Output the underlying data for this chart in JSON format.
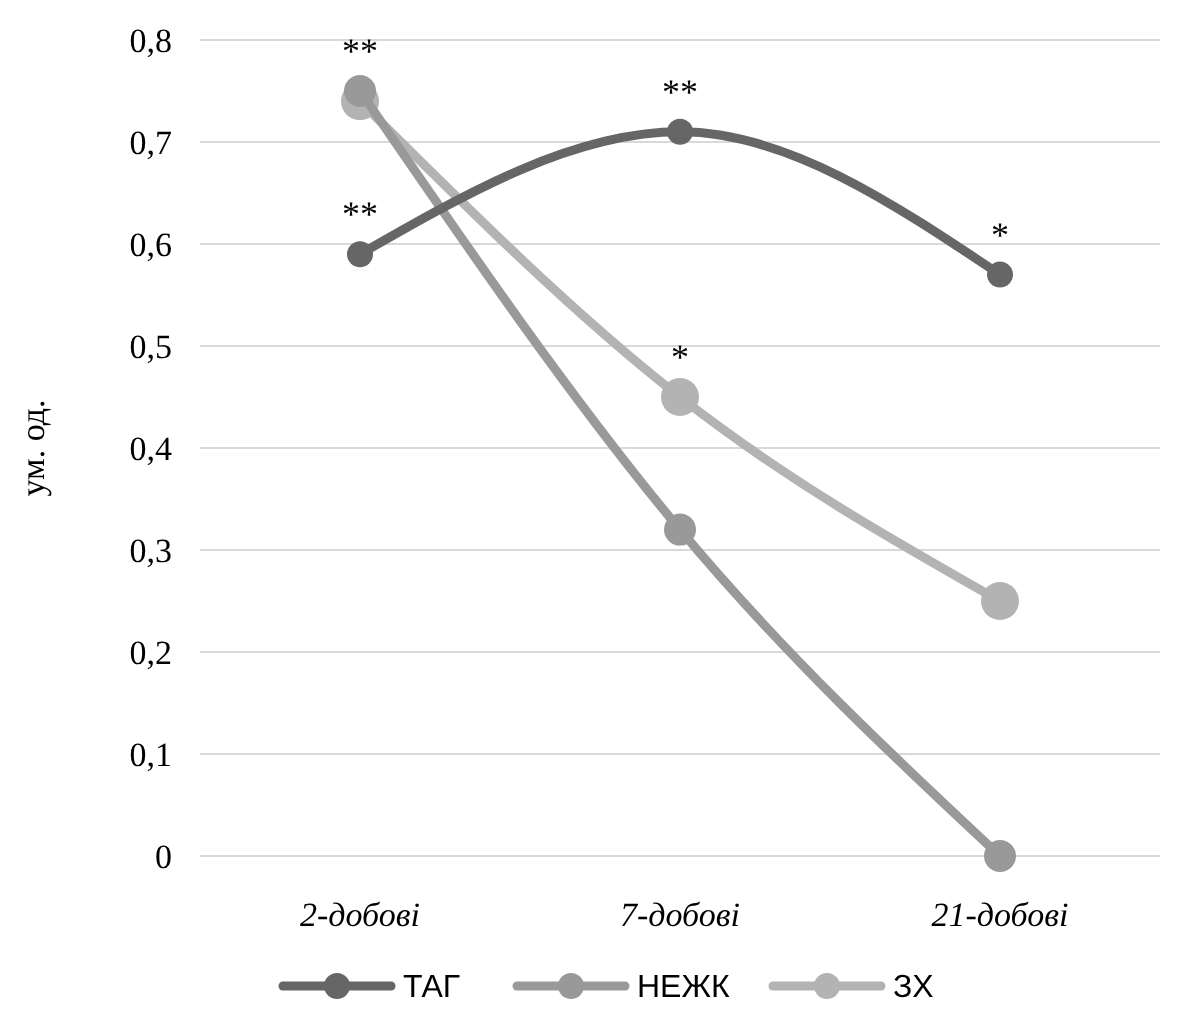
{
  "chart_data": {
    "type": "line",
    "ylabel": "ум. од.",
    "categories": [
      "2-добові",
      "7-добові",
      "21-добові"
    ],
    "series": [
      {
        "name": "ТАГ",
        "color": "#666666",
        "values": [
          0.59,
          0.71,
          0.57
        ]
      },
      {
        "name": "НЕЖК",
        "color": "#999999",
        "values": [
          0.75,
          0.32,
          0
        ]
      },
      {
        "name": "ЗХ",
        "color": "#b3b3b3",
        "values": [
          0.74,
          0.45,
          0.25
        ]
      }
    ],
    "ylim": [
      0,
      0.8
    ],
    "yticks": [
      {
        "value": 0,
        "label": "0"
      },
      {
        "value": 0.1,
        "label": "0,1"
      },
      {
        "value": 0.2,
        "label": "0,2"
      },
      {
        "value": 0.3,
        "label": "0,3"
      },
      {
        "value": 0.4,
        "label": "0,4"
      },
      {
        "value": 0.5,
        "label": "0,5"
      },
      {
        "value": 0.6,
        "label": "0,6"
      },
      {
        "value": 0.7,
        "label": "0,7"
      },
      {
        "value": 0.8,
        "label": "0,8"
      }
    ],
    "grid": "y",
    "legend": "bottom",
    "marker": "circle",
    "line_style": "solid",
    "annotations": [
      {
        "text": "**",
        "x": "2-добові",
        "y": 0.75
      },
      {
        "text": "**",
        "x": "2-добові",
        "y": 0.59
      },
      {
        "text": "**",
        "x": "7-добові",
        "y": 0.71
      },
      {
        "text": "*",
        "x": "7-добові",
        "y": 0.45
      },
      {
        "text": "*",
        "x": "21-добові",
        "y": 0.57
      }
    ]
  }
}
